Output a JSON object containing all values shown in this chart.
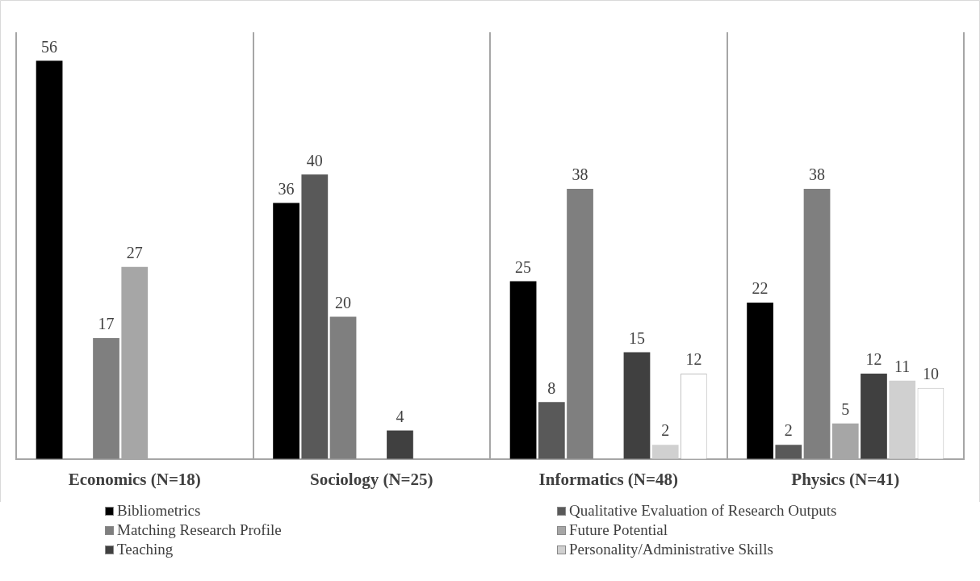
{
  "chart_data": {
    "type": "bar",
    "categories": [
      "Economics (N=18)",
      "Sociology (N=25)",
      "Informatics (N=48)",
      "Physics (N=41)"
    ],
    "series": [
      {
        "name": "Bibliometrics",
        "color": "#000000",
        "values": [
          56,
          36,
          25,
          22
        ]
      },
      {
        "name": "Qualitative Evaluation of Research Outputs",
        "color": "#595959",
        "values": [
          null,
          40,
          8,
          2
        ]
      },
      {
        "name": "Matching Research Profile",
        "color": "#7f7f7f",
        "values": [
          17,
          20,
          38,
          38
        ]
      },
      {
        "name": "Future Potential",
        "color": "#a6a6a6",
        "values": [
          27,
          null,
          null,
          5
        ]
      },
      {
        "name": "Teaching",
        "color": "#404040",
        "values": [
          null,
          4,
          15,
          12
        ]
      },
      {
        "name": "Personality/Administrative Skills",
        "color": "#d0d0d0",
        "values": [
          null,
          null,
          2,
          11
        ]
      },
      {
        "color": "#ffffff",
        "values": [
          null,
          null,
          12,
          10
        ]
      }
    ],
    "data_labels": true,
    "tick_labels": "x",
    "grid": "x",
    "legend": "bottom"
  }
}
